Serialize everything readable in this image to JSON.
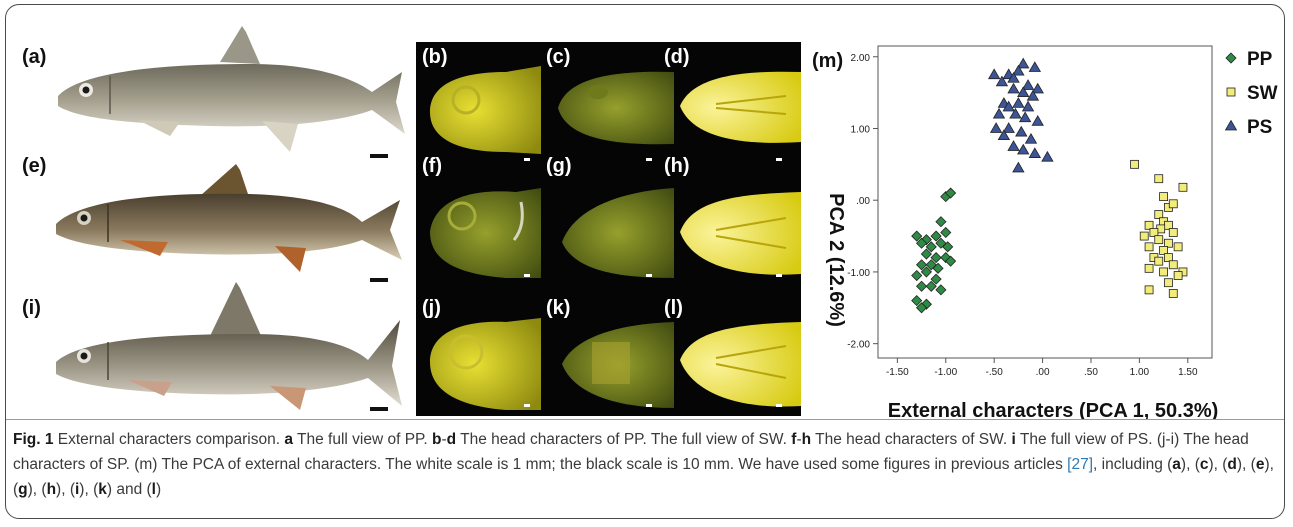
{
  "panels": {
    "a": "(a)",
    "e": "(e)",
    "i": "(i)",
    "b": "(b)",
    "c": "(c)",
    "d": "(d)",
    "f": "(f)",
    "g": "(g)",
    "h": "(h)",
    "j": "(j)",
    "k": "(k)",
    "l": "(l)",
    "m": "(m)"
  },
  "colors": {
    "PP": "#2e8b45",
    "SW": "#f2ec7a",
    "PS": "#3d5596",
    "head_yellow": "#e0d81e",
    "head_green": "#7e8a20"
  },
  "chart_data": {
    "type": "scatter",
    "xlabel": "External characters (PCA 1, 50.3%)",
    "ylabel": "PCA 2 (12.6%)",
    "xlim": [
      -1.7,
      1.75
    ],
    "ylim": [
      -2.2,
      2.15
    ],
    "xticks": [
      -1.5,
      -1.0,
      -0.5,
      0.0,
      0.5,
      1.0,
      1.5
    ],
    "xtick_labels": [
      "-1.50",
      "-1.00",
      "-.50",
      ".00",
      ".50",
      "1.00",
      "1.50"
    ],
    "yticks": [
      -2.0,
      -1.0,
      0.0,
      1.0,
      2.0
    ],
    "ytick_labels": [
      "-2.00",
      "-1.00",
      ".00",
      "1.00",
      "2.00"
    ],
    "legend_position": "top-right",
    "series": [
      {
        "name": "PP",
        "marker": "diamond",
        "points": [
          [
            -1.0,
            0.05
          ],
          [
            -0.95,
            0.1
          ],
          [
            -1.05,
            -0.3
          ],
          [
            -1.3,
            -0.5
          ],
          [
            -1.2,
            -0.55
          ],
          [
            -1.1,
            -0.5
          ],
          [
            -1.0,
            -0.45
          ],
          [
            -1.25,
            -0.6
          ],
          [
            -1.15,
            -0.65
          ],
          [
            -1.05,
            -0.6
          ],
          [
            -0.98,
            -0.65
          ],
          [
            -1.2,
            -0.75
          ],
          [
            -1.1,
            -0.8
          ],
          [
            -1.0,
            -0.8
          ],
          [
            -0.95,
            -0.85
          ],
          [
            -1.25,
            -0.9
          ],
          [
            -1.15,
            -0.9
          ],
          [
            -1.08,
            -0.95
          ],
          [
            -1.3,
            -1.05
          ],
          [
            -1.2,
            -1.0
          ],
          [
            -1.1,
            -1.1
          ],
          [
            -1.25,
            -1.2
          ],
          [
            -1.15,
            -1.2
          ],
          [
            -1.05,
            -1.25
          ],
          [
            -1.3,
            -1.4
          ],
          [
            -1.2,
            -1.45
          ],
          [
            -1.25,
            -1.5
          ]
        ]
      },
      {
        "name": "SW",
        "marker": "square",
        "points": [
          [
            0.95,
            0.5
          ],
          [
            1.2,
            0.3
          ],
          [
            1.45,
            0.18
          ],
          [
            1.25,
            0.05
          ],
          [
            1.3,
            -0.1
          ],
          [
            1.35,
            -0.05
          ],
          [
            1.2,
            -0.2
          ],
          [
            1.1,
            -0.35
          ],
          [
            1.25,
            -0.3
          ],
          [
            1.3,
            -0.35
          ],
          [
            1.22,
            -0.4
          ],
          [
            1.15,
            -0.45
          ],
          [
            1.35,
            -0.45
          ],
          [
            1.05,
            -0.5
          ],
          [
            1.2,
            -0.55
          ],
          [
            1.3,
            -0.6
          ],
          [
            1.1,
            -0.65
          ],
          [
            1.4,
            -0.65
          ],
          [
            1.25,
            -0.7
          ],
          [
            1.15,
            -0.8
          ],
          [
            1.3,
            -0.8
          ],
          [
            1.2,
            -0.85
          ],
          [
            1.35,
            -0.9
          ],
          [
            1.1,
            -0.95
          ],
          [
            1.45,
            -1.0
          ],
          [
            1.4,
            -1.05
          ],
          [
            1.3,
            -1.15
          ],
          [
            1.1,
            -1.25
          ],
          [
            1.35,
            -1.3
          ],
          [
            1.25,
            -1.0
          ]
        ]
      },
      {
        "name": "PS",
        "marker": "triangle",
        "points": [
          [
            -0.2,
            1.9
          ],
          [
            -0.08,
            1.85
          ],
          [
            -0.5,
            1.75
          ],
          [
            -0.35,
            1.75
          ],
          [
            -0.25,
            1.8
          ],
          [
            -0.42,
            1.65
          ],
          [
            -0.3,
            1.7
          ],
          [
            -0.15,
            1.6
          ],
          [
            -0.05,
            1.55
          ],
          [
            -0.3,
            1.55
          ],
          [
            -0.2,
            1.5
          ],
          [
            -0.1,
            1.45
          ],
          [
            -0.4,
            1.35
          ],
          [
            -0.25,
            1.35
          ],
          [
            -0.35,
            1.3
          ],
          [
            -0.15,
            1.3
          ],
          [
            -0.45,
            1.2
          ],
          [
            -0.28,
            1.2
          ],
          [
            -0.18,
            1.15
          ],
          [
            -0.05,
            1.1
          ],
          [
            -0.48,
            1.0
          ],
          [
            -0.35,
            1.0
          ],
          [
            -0.22,
            0.95
          ],
          [
            -0.4,
            0.9
          ],
          [
            -0.12,
            0.85
          ],
          [
            -0.3,
            0.75
          ],
          [
            -0.2,
            0.7
          ],
          [
            -0.08,
            0.65
          ],
          [
            0.05,
            0.6
          ],
          [
            -0.25,
            0.45
          ]
        ]
      }
    ]
  },
  "caption": {
    "fig": "Fig. 1",
    "parts": [
      {
        "t": " External characters comparison. ",
        "b": false
      },
      {
        "t": "a",
        "b": true
      },
      {
        "t": " The full view of PP. ",
        "b": false
      },
      {
        "t": "b",
        "b": true
      },
      {
        "t": "-",
        "b": false
      },
      {
        "t": "d",
        "b": true
      },
      {
        "t": " The head characters of PP. The full view of SW. ",
        "b": false
      },
      {
        "t": "f",
        "b": true
      },
      {
        "t": "-",
        "b": false
      },
      {
        "t": "h",
        "b": true
      },
      {
        "t": " The head characters of SW. ",
        "b": false
      },
      {
        "t": "i",
        "b": true
      },
      {
        "t": " The full view of PS. (j-i) The head characters of SP. (m) The PCA of external characters. The white scale is 1 mm; the black scale is 10 mm. We have used some figures in previous articles ",
        "b": false
      },
      {
        "t": "[27]",
        "b": false,
        "ref": true
      },
      {
        "t": ", including (",
        "b": false
      },
      {
        "t": "a",
        "b": true
      },
      {
        "t": "), (",
        "b": false
      },
      {
        "t": "c",
        "b": true
      },
      {
        "t": "), (",
        "b": false
      },
      {
        "t": "d",
        "b": true
      },
      {
        "t": "), (",
        "b": false
      },
      {
        "t": "e",
        "b": true
      },
      {
        "t": "), (",
        "b": false
      },
      {
        "t": "g",
        "b": true
      },
      {
        "t": "), (",
        "b": false
      },
      {
        "t": "h",
        "b": true
      },
      {
        "t": "), (",
        "b": false
      },
      {
        "t": "i",
        "b": true
      },
      {
        "t": "), (",
        "b": false
      },
      {
        "t": "k",
        "b": true
      },
      {
        "t": ") and (",
        "b": false
      },
      {
        "t": "l",
        "b": true
      },
      {
        "t": ")",
        "b": false
      }
    ]
  }
}
